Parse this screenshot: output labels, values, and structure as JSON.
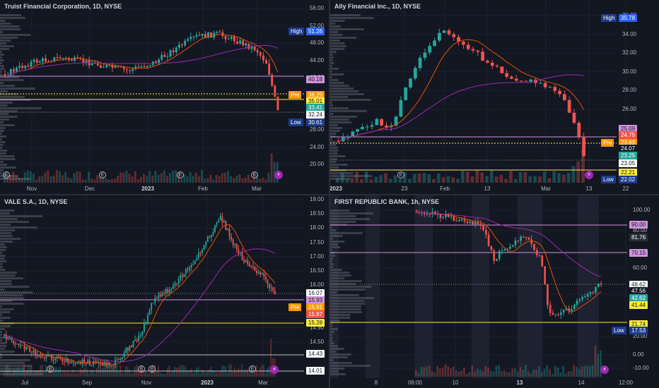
{
  "panes": [
    {
      "id": "tfc",
      "title": "Truist Financial Corporation, 1D, NYSE",
      "y_ticks": [
        "56.00",
        "52.00",
        "48.00",
        "44.00",
        "40.00",
        "36.00",
        "32.00",
        "28.00",
        "24.00",
        "20.00"
      ],
      "tags": [
        {
          "label": "High",
          "value": "51.26",
          "bg": "#2962ff",
          "label_bg": "#1e3a8a"
        },
        {
          "value": "40.18",
          "bg": "#ce93d8",
          "fg": "#131722"
        },
        {
          "label": "Pre",
          "value": "36.25",
          "bg": "#ff9800",
          "label_bg": "#ff9800"
        },
        {
          "value": "35.01",
          "bg": "#ffeb3b",
          "fg": "#131722"
        },
        {
          "value": "33.41",
          "bg": "#26a69a"
        },
        {
          "value": "32.24",
          "bg": "#ffffff",
          "fg": "#131722"
        },
        {
          "label": "Low",
          "value": "30.61",
          "bg": "#1e3a8a",
          "label_bg": "#1e3a8a"
        }
      ],
      "x_ticks": [
        {
          "t": "Nov"
        },
        {
          "t": "Dec"
        },
        {
          "t": "2023",
          "bold": true
        },
        {
          "t": "Feb"
        },
        {
          "t": "Mar"
        }
      ]
    },
    {
      "id": "ally",
      "title": "Ally Financial Inc., 1D, NYSE",
      "y_ticks": [
        "36.00",
        "34.00",
        "32.00",
        "30.00",
        "28.00",
        "26.00",
        "24.00",
        "22.00",
        "20.00"
      ],
      "tags": [
        {
          "label": "High",
          "value": "35.78",
          "bg": "#2962ff",
          "label_bg": "#1e3a8a"
        },
        {
          "value": "25.09",
          "bg": "#ce93d8",
          "fg": "#131722"
        },
        {
          "value": "24.75",
          "bg": "#ef5350"
        },
        {
          "label": "Pre",
          "value": "23.63",
          "bg": "#ff9800",
          "label_bg": "#ff9800"
        },
        {
          "value": "24.07",
          "bg": "#131722"
        },
        {
          "value": "23.25",
          "bg": "#26a69a"
        },
        {
          "value": "23.05",
          "bg": "#ffffff",
          "fg": "#131722"
        },
        {
          "value": "22.21",
          "bg": "#ffeb3b",
          "fg": "#131722"
        },
        {
          "label": "Low",
          "value": "22.02",
          "bg": "#1e3a8a",
          "label_bg": "#1e3a8a"
        }
      ],
      "x_ticks": [
        {
          "t": "2023",
          "bold": true
        },
        {
          "t": "23"
        },
        {
          "t": "Feb"
        },
        {
          "t": "13"
        },
        {
          "t": "Mar"
        },
        {
          "t": "13"
        },
        {
          "t": "22"
        }
      ]
    },
    {
      "id": "vale",
      "title": "VALE S.A., 1D, NYSE",
      "y_ticks": [
        "19.00",
        "18.50",
        "18.00",
        "17.50",
        "17.00",
        "16.50",
        "16.00",
        "15.50",
        "15.00",
        "14.90",
        "14.50",
        "14.15",
        "14.00"
      ],
      "tags": [
        {
          "value": "16.07",
          "bg": "#ffffff",
          "fg": "#131722"
        },
        {
          "value": "15.93",
          "bg": "#ce93d8",
          "fg": "#131722"
        },
        {
          "label": "Pre",
          "value": "15.91",
          "bg": "#ff9800",
          "label_bg": "#ff9800"
        },
        {
          "value": "15.87",
          "bg": "#ef5350"
        },
        {
          "value": "15.28",
          "bg": "#ffeb3b",
          "fg": "#131722"
        },
        {
          "value": "14.43",
          "bg": "#ffffff",
          "fg": "#131722"
        },
        {
          "value": "14.01",
          "bg": "#ffffff",
          "fg": "#131722"
        }
      ],
      "x_ticks": [
        {
          "t": "Jul"
        },
        {
          "t": "Sep"
        },
        {
          "t": "Nov"
        },
        {
          "t": "2023",
          "bold": true
        },
        {
          "t": "Mar"
        }
      ]
    },
    {
      "id": "frc",
      "title": "FIRST REPUBLIC BANK, 1h, NYSE",
      "y_ticks": [
        "100.00",
        "80.00",
        "60.00",
        "40.00",
        "20.00",
        "0.00",
        "-10.00"
      ],
      "tags": [
        {
          "value": "90.00",
          "bg": "#ce93d8",
          "fg": "#131722"
        },
        {
          "value": "81.76",
          "bg": "#2a2e39"
        },
        {
          "value": "70.15",
          "bg": "#ce93d8",
          "fg": "#131722"
        },
        {
          "value": "48.62",
          "bg": "#ffffff",
          "fg": "#131722"
        },
        {
          "value": "47.56",
          "bg": "#131722"
        },
        {
          "value": "42.62",
          "bg": "#26a69a"
        },
        {
          "value": "41.44",
          "bg": "#ffeb3b",
          "fg": "#131722"
        },
        {
          "value": "21.74",
          "bg": "#ffeb3b",
          "fg": "#131722"
        },
        {
          "label": "Low",
          "value": "17.53",
          "bg": "#1e3a8a",
          "label_bg": "#1e3a8a"
        }
      ],
      "x_ticks": [
        {
          "t": "8"
        },
        {
          "t": "06:00"
        },
        {
          "t": "10"
        },
        {
          "t": "13",
          "bold": true
        },
        {
          "t": "14"
        },
        {
          "t": "12:00"
        }
      ]
    }
  ],
  "colors": {
    "up": "#26a69a",
    "down": "#ef5350",
    "bg": "#131722",
    "grid": "#1f2430"
  }
}
